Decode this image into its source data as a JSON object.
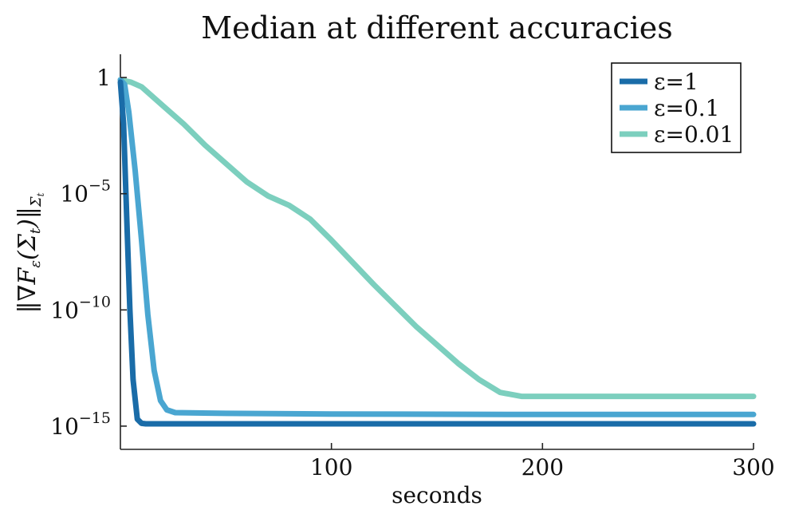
{
  "chart_data": {
    "type": "line",
    "title": "Median at different accuracies",
    "xlabel": "seconds",
    "ylabel": "‖∇F_ε(Σ_t)‖_Σ_t",
    "ylabel_parts": {
      "open": "‖∇F",
      "sub1": "ε",
      "mid": "(Σ",
      "sub2": "t",
      "close": ")‖",
      "sub3": "Σ",
      "sub4": "t"
    },
    "xlim": [
      0,
      300
    ],
    "ylim_log10": [
      -16,
      1
    ],
    "yscale": "log",
    "grid": false,
    "legend_position": "top-right",
    "x_ticks": [
      100,
      200,
      300
    ],
    "x_tick_labels": [
      "100",
      "200",
      "300"
    ],
    "y_ticks": [
      {
        "exp": 0,
        "base": "1",
        "sup": ""
      },
      {
        "exp": -5,
        "base": "10",
        "sup": "−5"
      },
      {
        "exp": -10,
        "base": "10",
        "sup": "−10"
      },
      {
        "exp": -15,
        "base": "10",
        "sup": "−15"
      }
    ],
    "series": [
      {
        "name": "ε=1",
        "color": "#1a6ca8",
        "points": [
          [
            0,
            -0.2
          ],
          [
            1.5,
            -2
          ],
          [
            3,
            -6
          ],
          [
            4.5,
            -10
          ],
          [
            6,
            -13
          ],
          [
            8,
            -14.7
          ],
          [
            10,
            -14.88
          ],
          [
            12,
            -14.9
          ],
          [
            100,
            -14.9
          ],
          [
            200,
            -14.9
          ],
          [
            300,
            -14.9
          ]
        ]
      },
      {
        "name": "ε=0.1",
        "color": "#4aa6d1",
        "points": [
          [
            0,
            -0.1
          ],
          [
            2,
            -0.3
          ],
          [
            4,
            -1.5
          ],
          [
            7,
            -4
          ],
          [
            10,
            -7
          ],
          [
            13,
            -10.2
          ],
          [
            16,
            -12.6
          ],
          [
            19,
            -13.9
          ],
          [
            22,
            -14.3
          ],
          [
            26,
            -14.42
          ],
          [
            50,
            -14.45
          ],
          [
            100,
            -14.48
          ],
          [
            200,
            -14.5
          ],
          [
            300,
            -14.5
          ]
        ]
      },
      {
        "name": "ε=0.01",
        "color": "#7ccfbe",
        "points": [
          [
            0,
            -0.1
          ],
          [
            5,
            -0.2
          ],
          [
            10,
            -0.4
          ],
          [
            20,
            -1.2
          ],
          [
            30,
            -2.0
          ],
          [
            40,
            -2.9
          ],
          [
            50,
            -3.7
          ],
          [
            60,
            -4.5
          ],
          [
            70,
            -5.1
          ],
          [
            80,
            -5.5
          ],
          [
            90,
            -6.1
          ],
          [
            100,
            -7.0
          ],
          [
            120,
            -8.9
          ],
          [
            140,
            -10.7
          ],
          [
            160,
            -12.3
          ],
          [
            170,
            -13.0
          ],
          [
            180,
            -13.55
          ],
          [
            190,
            -13.72
          ],
          [
            200,
            -13.72
          ],
          [
            250,
            -13.72
          ],
          [
            300,
            -13.72
          ]
        ]
      }
    ]
  }
}
